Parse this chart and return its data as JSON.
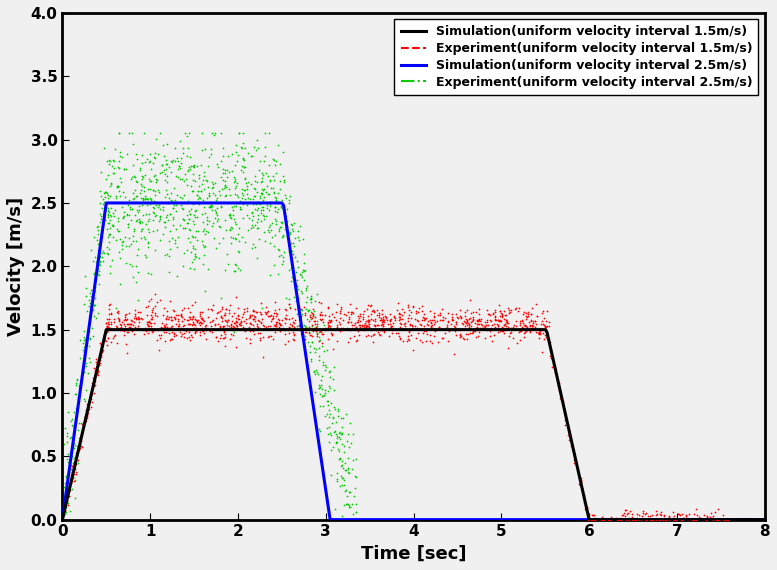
{
  "xlabel": "Time [sec]",
  "ylabel": "Velocity [m/s]",
  "xlim": [
    0,
    8
  ],
  "ylim": [
    0,
    4.0
  ],
  "xticks": [
    0,
    1,
    2,
    3,
    4,
    5,
    6,
    7,
    8
  ],
  "yticks": [
    0.0,
    0.5,
    1.0,
    1.5,
    2.0,
    2.5,
    3.0,
    3.5,
    4.0
  ],
  "sim15": {
    "color": "#000000",
    "label": "Simulation(uniform velocity interval 1.5m/s)",
    "linewidth": 2.2,
    "linestyle": "-"
  },
  "exp15": {
    "color": "#ff0000",
    "label": "Experiment(uniform velocity interval 1.5m/s)",
    "linewidth": 1.0,
    "linestyle": "--"
  },
  "sim25": {
    "color": "#0000ff",
    "label": "Simulation(uniform velocity interval 2.5m/s)",
    "linewidth": 2.2,
    "linestyle": "-"
  },
  "exp25": {
    "color": "#00cc00",
    "label": "Experiment(uniform velocity interval 2.5m/s)",
    "linewidth": 0.8,
    "linestyle": "-."
  },
  "background_color": "#f0f0f0",
  "legend_fontsize": 9,
  "axis_label_fontsize": 13,
  "tick_fontsize": 11
}
